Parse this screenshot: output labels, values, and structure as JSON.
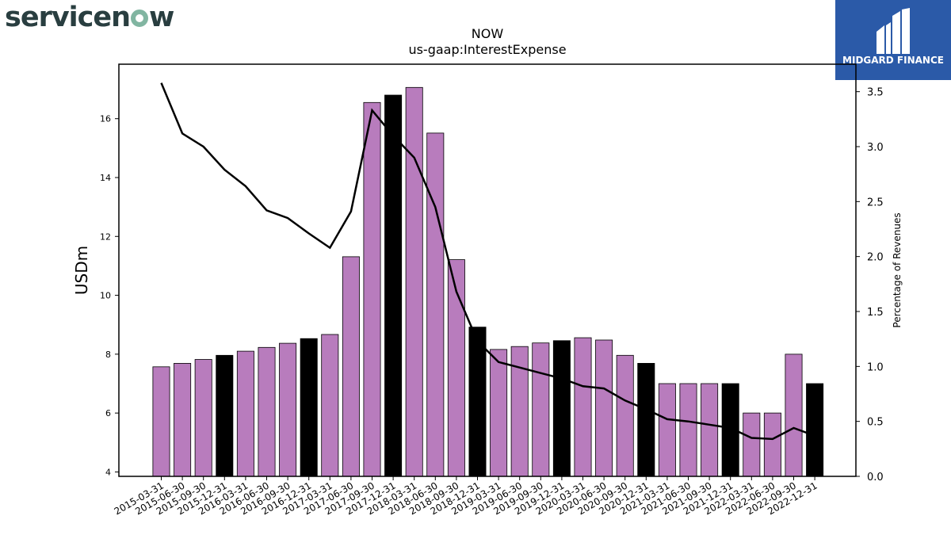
{
  "logos": {
    "left_brand_pre": "servicen",
    "left_brand_post": "w",
    "right_brand": "MIDGARD FINANCE"
  },
  "colors": {
    "bar_purple": "#b87cbd",
    "bar_black": "#000000",
    "line": "#000000",
    "servicenow_text": "#293e40",
    "servicenow_o": "#81b5a1",
    "midgard_bg": "#2b5aa8"
  },
  "chart_data": {
    "type": "bar",
    "title": "NOW",
    "subtitle": "us-gaap:InterestExpense",
    "ylabel": "USDm",
    "y2label": "Percentage of Revenues",
    "ylim": [
      3.85,
      17.85
    ],
    "y2lim": [
      0.0,
      3.75
    ],
    "yticks": [
      4,
      6,
      8,
      10,
      12,
      14,
      16
    ],
    "y2ticks": [
      "0.0",
      "0.5",
      "1.0",
      "1.5",
      "2.0",
      "2.5",
      "3.0",
      "3.5"
    ],
    "categories": [
      "2015-03-31",
      "2015-06-30",
      "2015-09-30",
      "2015-12-31",
      "2016-03-31",
      "2016-06-30",
      "2016-09-30",
      "2016-12-31",
      "2017-03-31",
      "2017-06-30",
      "2017-09-30",
      "2017-12-31",
      "2018-03-31",
      "2018-06-30",
      "2018-09-30",
      "2018-12-31",
      "2019-03-31",
      "2019-06-30",
      "2019-09-30",
      "2019-12-31",
      "2020-03-31",
      "2020-06-30",
      "2020-09-30",
      "2020-12-31",
      "2021-03-31",
      "2021-06-30",
      "2021-09-30",
      "2021-12-31",
      "2022-03-31",
      "2022-06-30",
      "2022-09-30",
      "2022-12-31"
    ],
    "series": [
      {
        "values": [
          7.57,
          7.69,
          7.82,
          7.96,
          8.1,
          8.23,
          8.37,
          8.53,
          8.67,
          11.31,
          16.55,
          16.8,
          17.06,
          15.51,
          11.21,
          8.92,
          8.16,
          8.26,
          8.38,
          8.46,
          8.56,
          8.48,
          7.96,
          7.69,
          7.0,
          7.0,
          7.0,
          7.0,
          6.0,
          6.0,
          8.0,
          7.0
        ],
        "fiscal_year_end_highlight": [
          false,
          false,
          false,
          true,
          false,
          false,
          false,
          true,
          false,
          false,
          false,
          true,
          false,
          false,
          false,
          true,
          false,
          false,
          false,
          true,
          false,
          false,
          false,
          true,
          false,
          false,
          false,
          true,
          false,
          false,
          false,
          true
        ]
      },
      {
        "axis": "right",
        "type": "line",
        "values": [
          3.58,
          3.12,
          3.0,
          2.79,
          2.64,
          2.42,
          2.35,
          2.21,
          2.08,
          2.41,
          3.33,
          3.1,
          2.9,
          2.45,
          1.68,
          1.23,
          1.04,
          0.99,
          0.94,
          0.89,
          0.82,
          0.8,
          0.69,
          0.61,
          0.52,
          0.5,
          0.47,
          0.44,
          0.35,
          0.34,
          0.44,
          0.37
        ]
      }
    ]
  }
}
